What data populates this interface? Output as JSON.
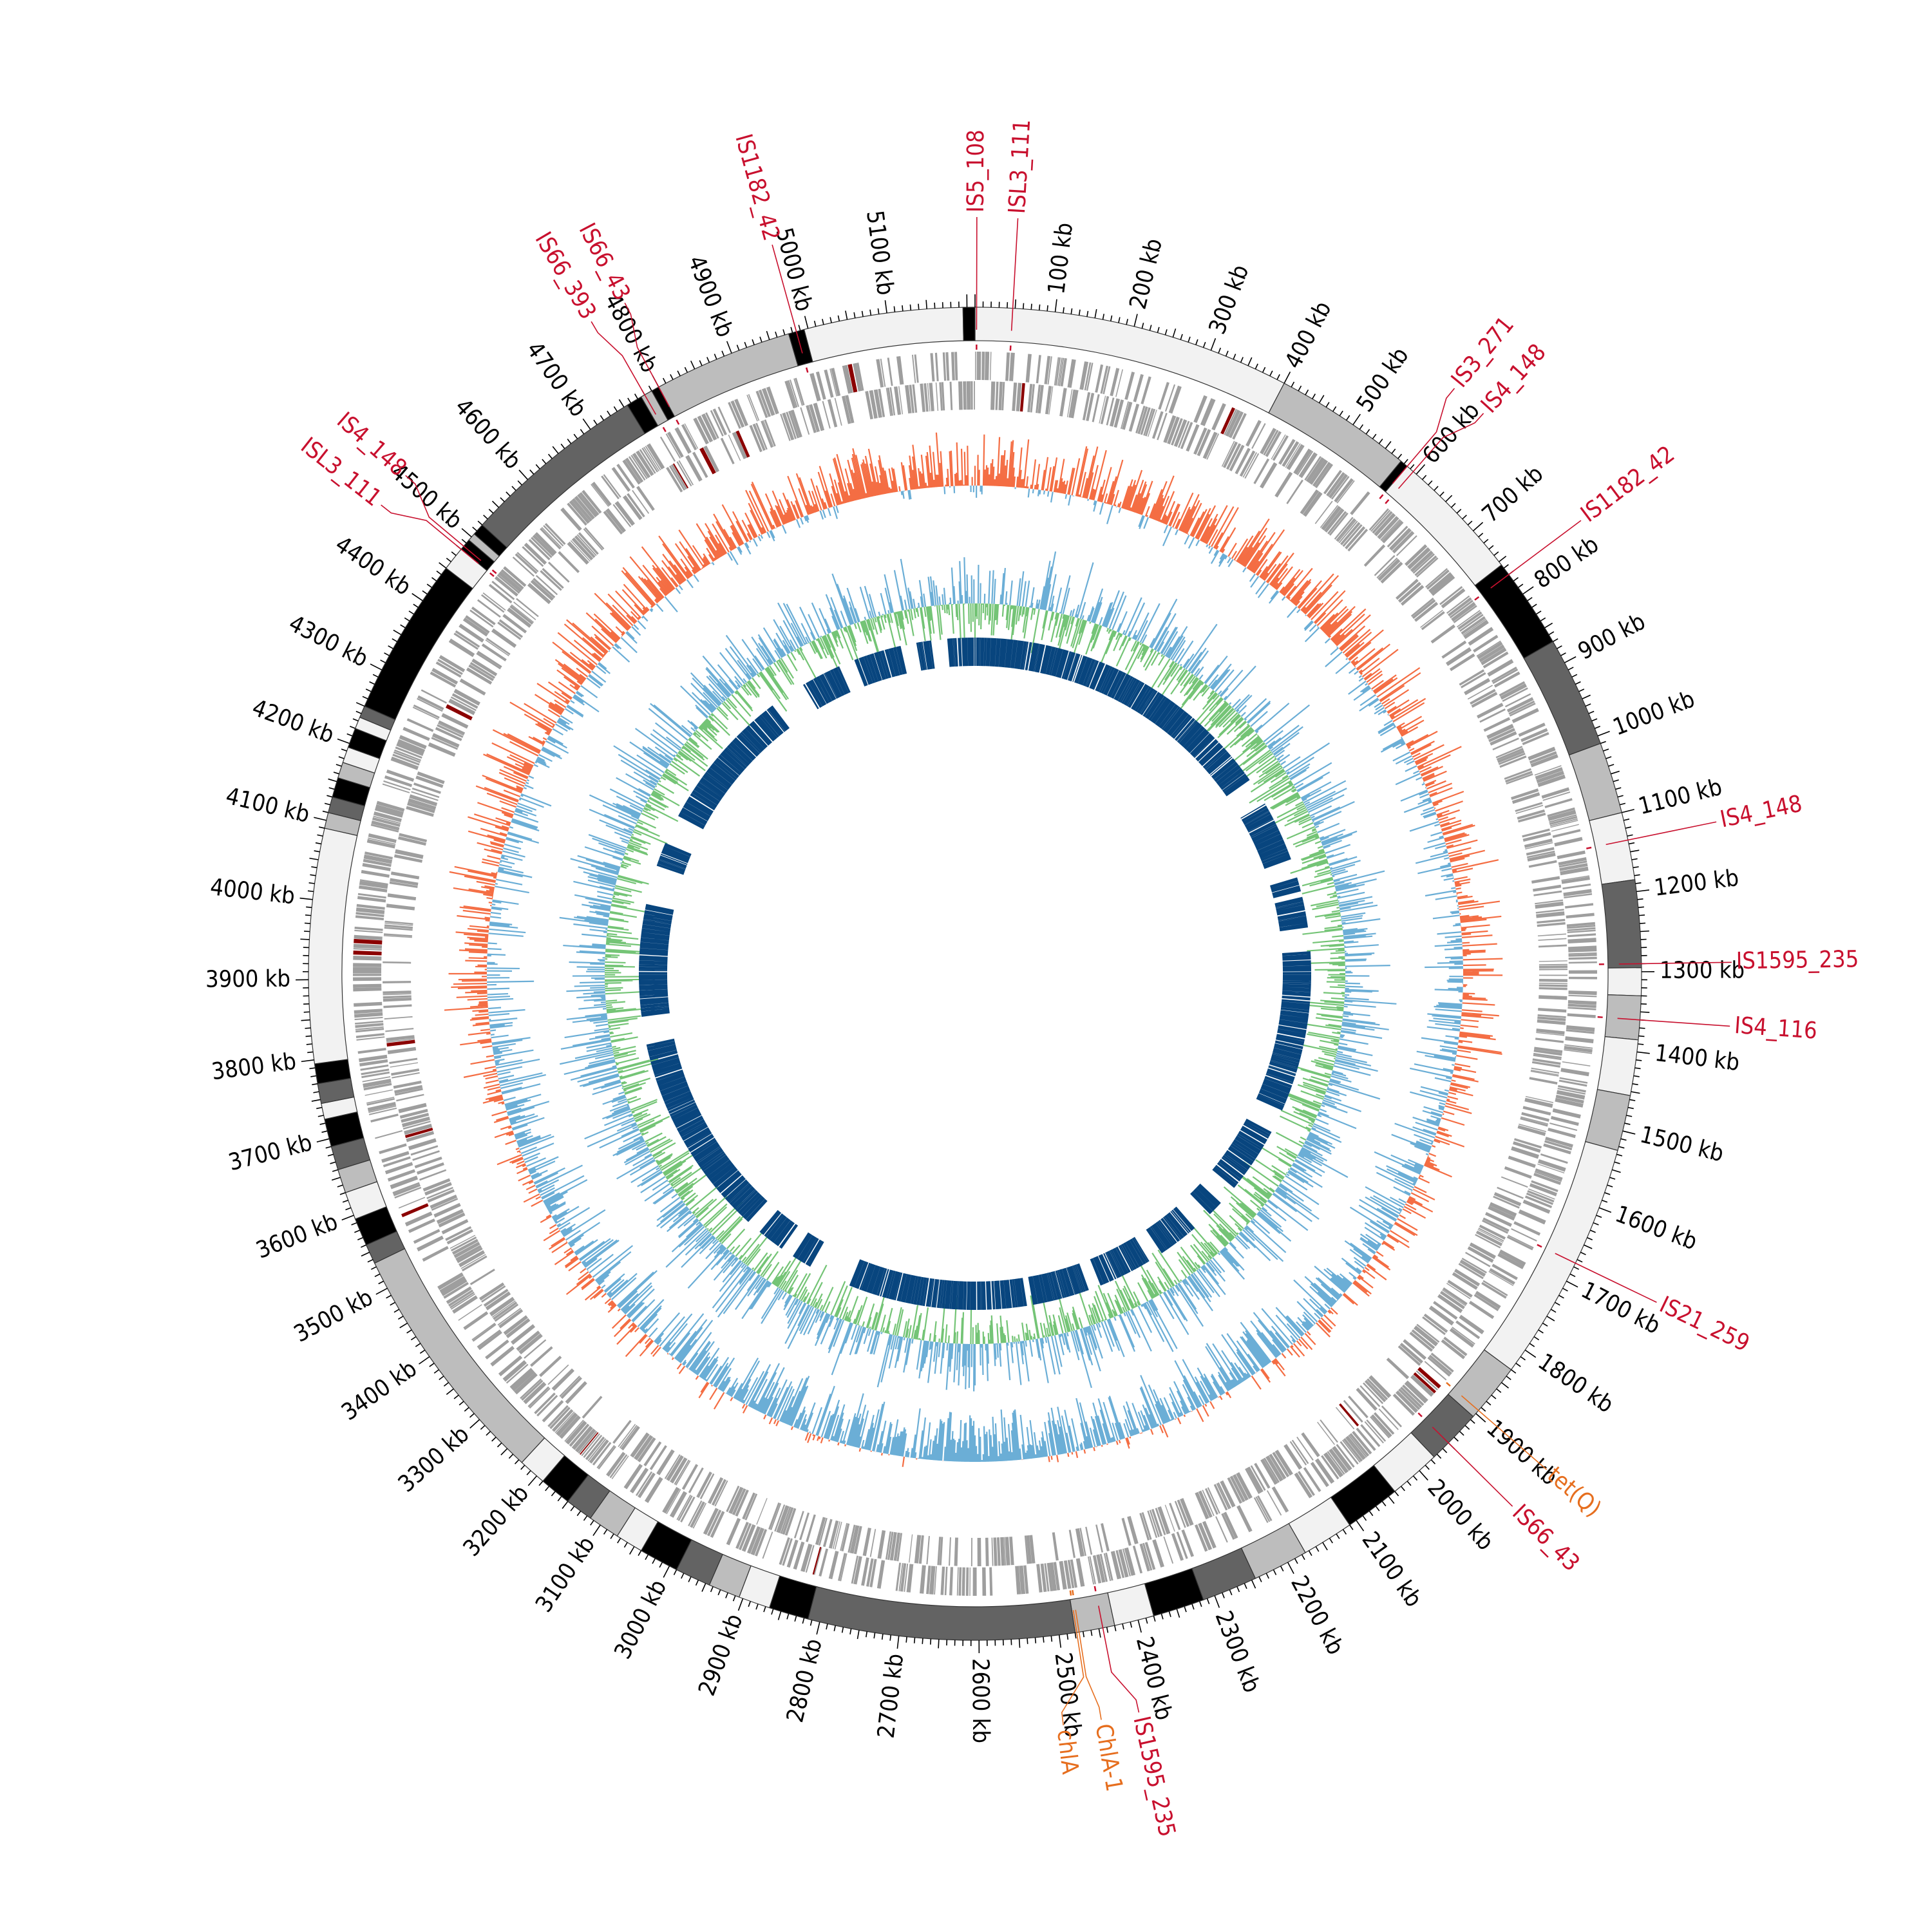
{
  "genome": {
    "length_kb": 5210,
    "tick_labels": [
      "100 kb",
      "200 kb",
      "300 kb",
      "400 kb",
      "500 kb",
      "600 kb",
      "700 kb",
      "800 kb",
      "900 kb",
      "1000 kb",
      "1100 kb",
      "1200 kb",
      "1300 kb",
      "1400 kb",
      "1500 kb",
      "1600 kb",
      "1700 kb",
      "1800 kb",
      "1900 kb",
      "2000 kb",
      "2100 kb",
      "2200 kb",
      "2300 kb",
      "2400 kb",
      "2500 kb",
      "2600 kb",
      "2700 kb",
      "2800 kb",
      "2900 kb",
      "3000 kb",
      "3100 kb",
      "3200 kb",
      "3300 kb",
      "3400 kb",
      "3500 kb",
      "3600 kb",
      "3700 kb",
      "3800 kb",
      "3900 kb",
      "4000 kb",
      "4100 kb",
      "4200 kb",
      "4300 kb",
      "4400 kb",
      "4500 kb",
      "4600 kb",
      "4700 kb",
      "4800 kb",
      "4900 kb",
      "5000 kb",
      "5100 kb"
    ]
  },
  "contigs": [
    {
      "start": 0,
      "end": 400,
      "shade": "#f2f2f2"
    },
    {
      "start": 400,
      "end": 575,
      "shade": "#bdbdbd"
    },
    {
      "start": 575,
      "end": 585,
      "shade": "#000000"
    },
    {
      "start": 585,
      "end": 755,
      "shade": "#f2f2f2"
    },
    {
      "start": 755,
      "end": 870,
      "shade": "#000000"
    },
    {
      "start": 870,
      "end": 1010,
      "shade": "#636363"
    },
    {
      "start": 1010,
      "end": 1100,
      "shade": "#bdbdbd"
    },
    {
      "start": 1100,
      "end": 1185,
      "shade": "#f2f2f2"
    },
    {
      "start": 1185,
      "end": 1295,
      "shade": "#636363"
    },
    {
      "start": 1295,
      "end": 1330,
      "shade": "#f2f2f2"
    },
    {
      "start": 1330,
      "end": 1385,
      "shade": "#bdbdbd"
    },
    {
      "start": 1385,
      "end": 1455,
      "shade": "#f2f2f2"
    },
    {
      "start": 1455,
      "end": 1525,
      "shade": "#bdbdbd"
    },
    {
      "start": 1525,
      "end": 1830,
      "shade": "#f2f2f2"
    },
    {
      "start": 1830,
      "end": 1905,
      "shade": "#bdbdbd"
    },
    {
      "start": 1905,
      "end": 1975,
      "shade": "#636363"
    },
    {
      "start": 1975,
      "end": 2040,
      "shade": "#f2f2f2"
    },
    {
      "start": 2040,
      "end": 2110,
      "shade": "#000000"
    },
    {
      "start": 2110,
      "end": 2175,
      "shade": "#f2f2f2"
    },
    {
      "start": 2175,
      "end": 2245,
      "shade": "#bdbdbd"
    },
    {
      "start": 2245,
      "end": 2315,
      "shade": "#636363"
    },
    {
      "start": 2315,
      "end": 2380,
      "shade": "#000000"
    },
    {
      "start": 2380,
      "end": 2430,
      "shade": "#f2f2f2"
    },
    {
      "start": 2430,
      "end": 2480,
      "shade": "#bdbdbd"
    },
    {
      "start": 2480,
      "end": 2815,
      "shade": "#636363"
    },
    {
      "start": 2815,
      "end": 2865,
      "shade": "#000000"
    },
    {
      "start": 2865,
      "end": 2905,
      "shade": "#f2f2f2"
    },
    {
      "start": 2905,
      "end": 2945,
      "shade": "#bdbdbd"
    },
    {
      "start": 2945,
      "end": 2990,
      "shade": "#636363"
    },
    {
      "start": 2990,
      "end": 3040,
      "shade": "#000000"
    },
    {
      "start": 3040,
      "end": 3075,
      "shade": "#f2f2f2"
    },
    {
      "start": 3075,
      "end": 3115,
      "shade": "#bdbdbd"
    },
    {
      "start": 3115,
      "end": 3150,
      "shade": "#636363"
    },
    {
      "start": 3150,
      "end": 3190,
      "shade": "#000000"
    },
    {
      "start": 3190,
      "end": 3225,
      "shade": "#f2f2f2"
    },
    {
      "start": 3225,
      "end": 3535,
      "shade": "#bdbdbd"
    },
    {
      "start": 3535,
      "end": 3560,
      "shade": "#636363"
    },
    {
      "start": 3560,
      "end": 3595,
      "shade": "#000000"
    },
    {
      "start": 3595,
      "end": 3630,
      "shade": "#f2f2f2"
    },
    {
      "start": 3630,
      "end": 3660,
      "shade": "#bdbdbd"
    },
    {
      "start": 3660,
      "end": 3690,
      "shade": "#636363"
    },
    {
      "start": 3690,
      "end": 3725,
      "shade": "#000000"
    },
    {
      "start": 3725,
      "end": 3745,
      "shade": "#f2f2f2"
    },
    {
      "start": 3745,
      "end": 3770,
      "shade": "#636363"
    },
    {
      "start": 3770,
      "end": 3795,
      "shade": "#000000"
    },
    {
      "start": 3795,
      "end": 4090,
      "shade": "#f2f2f2"
    },
    {
      "start": 4090,
      "end": 4110,
      "shade": "#bdbdbd"
    },
    {
      "start": 4110,
      "end": 4130,
      "shade": "#636363"
    },
    {
      "start": 4130,
      "end": 4155,
      "shade": "#000000"
    },
    {
      "start": 4155,
      "end": 4175,
      "shade": "#bdbdbd"
    },
    {
      "start": 4175,
      "end": 4195,
      "shade": "#f2f2f2"
    },
    {
      "start": 4195,
      "end": 4220,
      "shade": "#000000"
    },
    {
      "start": 4220,
      "end": 4235,
      "shade": "#f2f2f2"
    },
    {
      "start": 4235,
      "end": 4250,
      "shade": "#636363"
    },
    {
      "start": 4250,
      "end": 4450,
      "shade": "#000000"
    },
    {
      "start": 4450,
      "end": 4480,
      "shade": "#f2f2f2"
    },
    {
      "start": 4480,
      "end": 4495,
      "shade": "#000000"
    },
    {
      "start": 4495,
      "end": 4505,
      "shade": "#bdbdbd"
    },
    {
      "start": 4505,
      "end": 4520,
      "shade": "#000000"
    },
    {
      "start": 4520,
      "end": 4755,
      "shade": "#636363"
    },
    {
      "start": 4755,
      "end": 4775,
      "shade": "#000000"
    },
    {
      "start": 4775,
      "end": 4790,
      "shade": "#bdbdbd"
    },
    {
      "start": 4790,
      "end": 4800,
      "shade": "#000000"
    },
    {
      "start": 4800,
      "end": 4975,
      "shade": "#bdbdbd"
    },
    {
      "start": 4975,
      "end": 4995,
      "shade": "#000000"
    },
    {
      "start": 4995,
      "end": 5195,
      "shade": "#f2f2f2"
    },
    {
      "start": 5195,
      "end": 5210,
      "shade": "#000000"
    }
  ],
  "annotations": [
    {
      "label": "IS5_108",
      "pos": 2,
      "color": "#c8102e"
    },
    {
      "label": "ISL3_111",
      "pos": 47,
      "color": "#c8102e"
    },
    {
      "label": "IS3_271",
      "pos": 585,
      "color": "#c8102e"
    },
    {
      "label": "IS4_148",
      "pos": 595,
      "color": "#c8102e"
    },
    {
      "label": "IS1182_42",
      "pos": 770,
      "color": "#c8102e"
    },
    {
      "label": "IS4_148",
      "pos": 1135,
      "color": "#c8102e"
    },
    {
      "label": "IS1595_235",
      "pos": 1290,
      "color": "#c8102e"
    },
    {
      "label": "IS4_116",
      "pos": 1360,
      "color": "#c8102e"
    },
    {
      "label": "IS21_259",
      "pos": 1675,
      "color": "#c8102e"
    },
    {
      "label": "tet(Q)",
      "pos": 1895,
      "color": "#e66e1e"
    },
    {
      "label": "IS66_43",
      "pos": 1950,
      "color": "#c8102e"
    },
    {
      "label": "IS1595_235",
      "pos": 2445,
      "color": "#c8102e"
    },
    {
      "label": "ChlA-1",
      "pos": 2475,
      "color": "#e66e1e"
    },
    {
      "label": "chlA",
      "pos": 2478,
      "color": "#e66e1e"
    },
    {
      "label": "ISL3_111",
      "pos": 4480,
      "color": "#c8102e"
    },
    {
      "label": "IS4_148",
      "pos": 4485,
      "color": "#c8102e"
    },
    {
      "label": "IS66_393",
      "pos": 4780,
      "color": "#c8102e"
    },
    {
      "label": "IS66_43",
      "pos": 4800,
      "color": "#c8102e"
    },
    {
      "label": "IS1182_42",
      "pos": 4985,
      "color": "#c8102e"
    }
  ],
  "tracks": {
    "genes_color": "#9e9e9e",
    "gene_accent_color": "#8b0000",
    "gc_skew_positive_color": "#f46d43",
    "gc_skew_negative_color": "#6baed6",
    "gc_content_color": "#74c476",
    "gc_content_light_color": "#6baed6",
    "similarity_color": "#08457e"
  }
}
